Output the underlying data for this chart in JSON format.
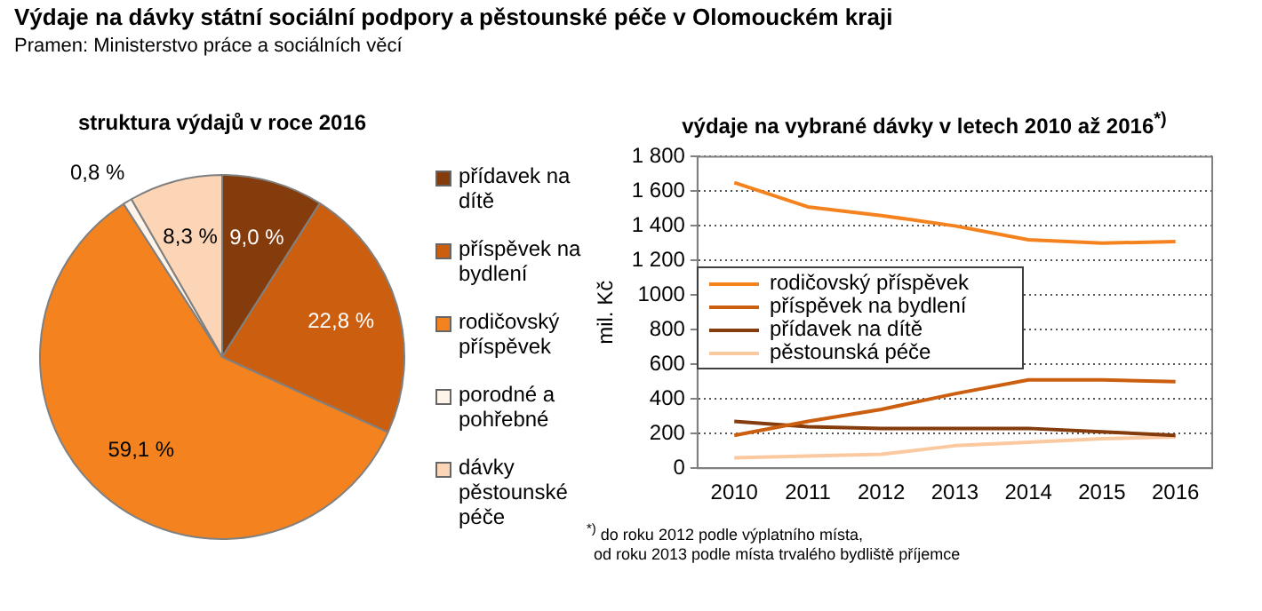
{
  "chart_data": [
    {
      "type": "pie",
      "title": "struktura výdajů v roce 2016",
      "annotations": [
        "Výdaje na dávky státní sociální podpory a pěstounské péče v Olomouckém kraji",
        "Pramen: Ministerstvo práce a sociálních věcí"
      ],
      "categories": [
        "přídavek na dítě",
        "příspěvek na bydlení",
        "rodičovský příspěvek",
        "porodné a pohřebné",
        "dávky pěstounské péče"
      ],
      "values": [
        9.0,
        22.8,
        59.1,
        0.8,
        8.3
      ],
      "value_labels": [
        "9,0 %",
        "22,8 %",
        "59,1 %",
        "0,8 %",
        "8,3 %"
      ],
      "colors": [
        "#843c0c",
        "#cc5e10",
        "#f4831f",
        "#fff4ea",
        "#fbd5b5"
      ],
      "legend": "right"
    },
    {
      "type": "line",
      "title": "výdaje na vybrané dávky v letech 2010 až 2016$^{*)}$",
      "ylabel": "mil. Kč",
      "annotations": [
        "$^{*)}$ do roku 2012 podle výplatního místa,",
        "od roku 2013 podle místa trvalého bydliště příjemce"
      ],
      "categories": [
        "2010",
        "2011",
        "2012",
        "2013",
        "2014",
        "2015",
        "2016"
      ],
      "series": [
        {
          "name": "rodičovský příspěvek",
          "color": "#f4831f",
          "values": [
            1650,
            1510,
            1460,
            1400,
            1320,
            1300,
            1310
          ]
        },
        {
          "name": "příspěvek na bydlení",
          "color": "#cc5e10",
          "values": [
            190,
            270,
            340,
            430,
            510,
            510,
            500
          ]
        },
        {
          "name": "přídavek na dítě",
          "color": "#843c0c",
          "values": [
            270,
            240,
            230,
            230,
            230,
            210,
            190
          ]
        },
        {
          "name": "pěstounská péče",
          "color": "#fbc9a0",
          "values": [
            60,
            70,
            80,
            130,
            150,
            170,
            180
          ]
        }
      ],
      "ylim": [
        0,
        1800
      ],
      "yticks": [
        0,
        200,
        400,
        600,
        800,
        {
          "value": 1000,
          "label": "1000"
        },
        {
          "value": 1200,
          "label": "1 200"
        },
        {
          "value": 1400,
          "label": "1 400"
        },
        {
          "value": 1600,
          "label": "1 600"
        },
        {
          "value": 1800,
          "label": "1 800"
        }
      ],
      "grid": "y",
      "legend": "left",
      "marker": "none",
      "line_style": "solid"
    }
  ]
}
